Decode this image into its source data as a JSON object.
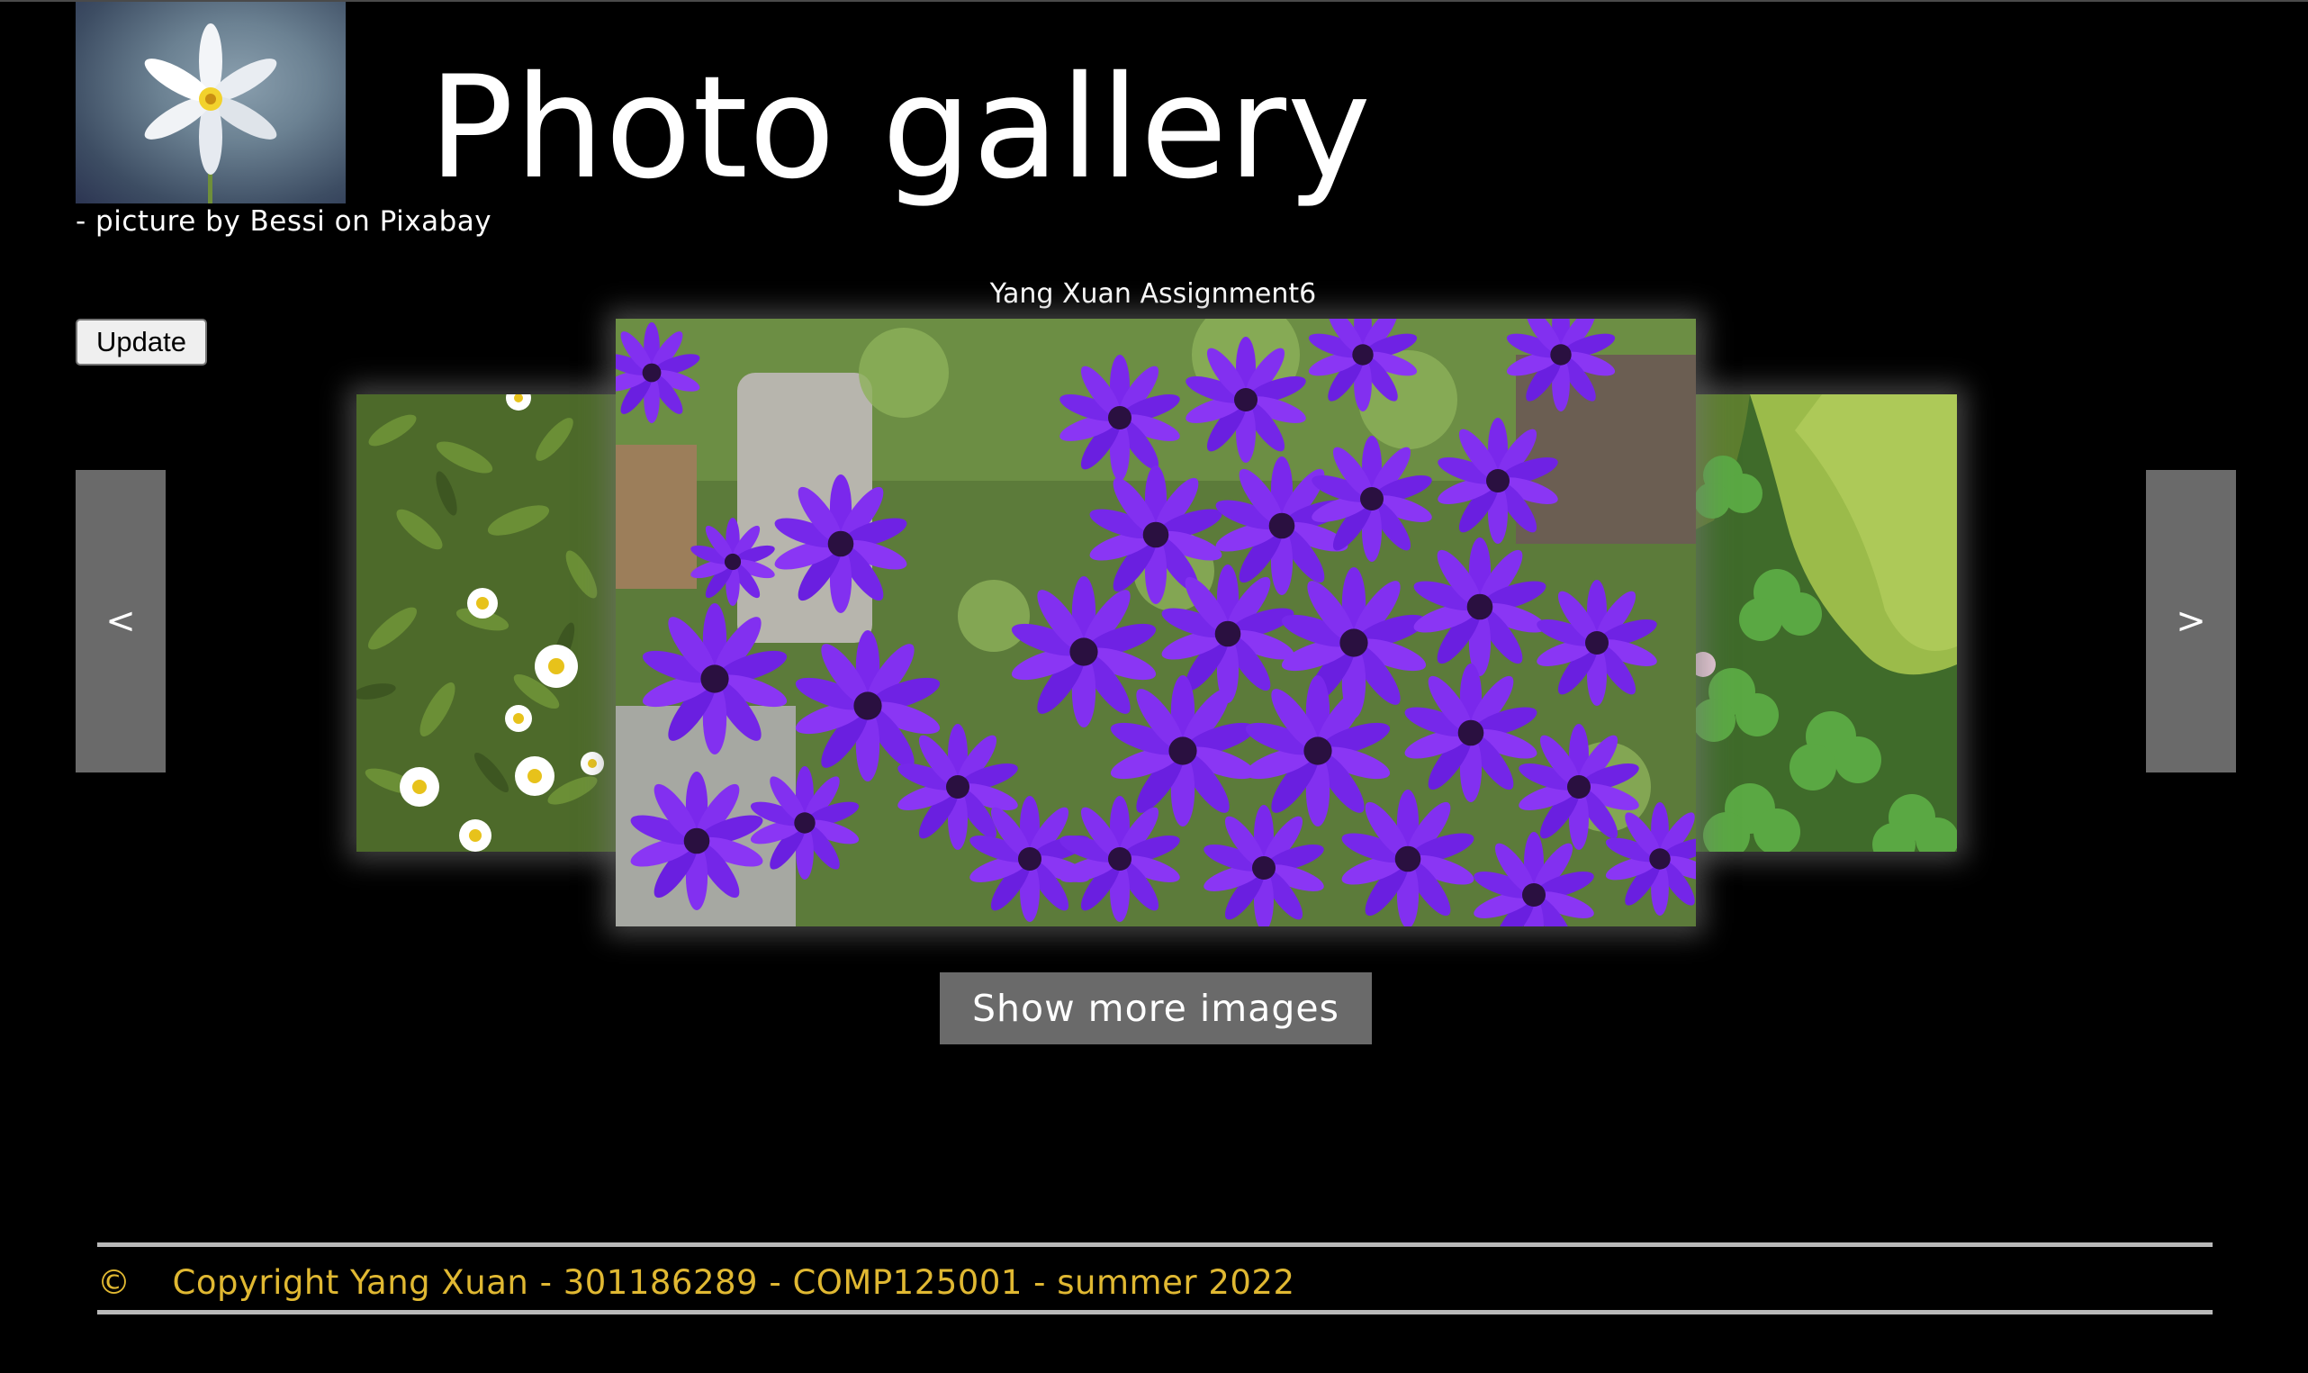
{
  "header": {
    "title": "Photo gallery",
    "credit": "- picture by Bessi on Pixabay",
    "subtitle": "Yang Xuan Assignment6"
  },
  "controls": {
    "update_label": "Update",
    "prev_label": "<",
    "next_label": ">",
    "show_more_label": "Show more images"
  },
  "gallery": {
    "slides": [
      {
        "position": "left",
        "subject": "white-daisies-in-green-foliage"
      },
      {
        "position": "center",
        "subject": "purple-cineraria-flowers"
      },
      {
        "position": "right",
        "subject": "moss-and-clover"
      }
    ]
  },
  "footer": {
    "symbol": "©",
    "text": "Copyright Yang Xuan - 301186289 - COMP125001 - summer 2022"
  },
  "colors": {
    "background": "#000000",
    "button_gray": "#6a6a6a",
    "footer_text": "#e0b832",
    "footer_rule": "#b9b9b9"
  }
}
